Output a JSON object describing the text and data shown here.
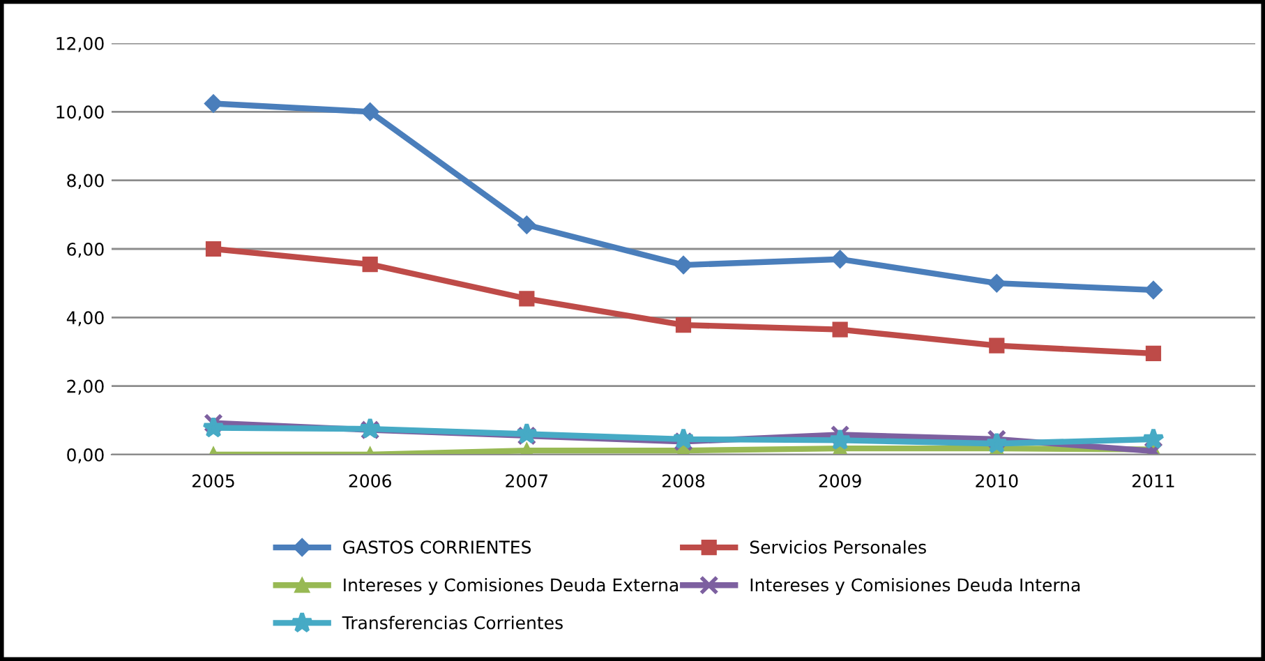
{
  "chart_data": {
    "type": "line",
    "categories": [
      "2005",
      "2006",
      "2007",
      "2008",
      "2009",
      "2010",
      "2011"
    ],
    "series": [
      {
        "name": "GASTOS CORRIENTES",
        "color": "#4a7ebb",
        "marker": "diamond",
        "values": [
          10.24,
          10.0,
          6.7,
          5.53,
          5.7,
          5.0,
          4.8
        ]
      },
      {
        "name": "Servicios Personales",
        "color": "#be4b48",
        "marker": "square",
        "values": [
          6.0,
          5.55,
          4.55,
          3.78,
          3.65,
          3.18,
          2.95
        ]
      },
      {
        "name": "Intereses y Comisiones Deuda Externa",
        "color": "#98b954",
        "marker": "triangle",
        "values": [
          0.0,
          0.0,
          0.12,
          0.12,
          0.18,
          0.18,
          0.15
        ]
      },
      {
        "name": "Intereses y Comisiones Deuda Interna",
        "color": "#7d60a0",
        "marker": "cross",
        "values": [
          0.92,
          0.72,
          0.55,
          0.38,
          0.58,
          0.45,
          0.1
        ]
      },
      {
        "name": "Transferencias Corrientes",
        "color": "#46aac5",
        "marker": "star",
        "values": [
          0.78,
          0.75,
          0.6,
          0.45,
          0.42,
          0.32,
          0.45
        ]
      }
    ],
    "ylim": [
      0,
      12
    ],
    "yticks": [
      {
        "value": 0,
        "label": "0,00"
      },
      {
        "value": 2,
        "label": "2,00"
      },
      {
        "value": 4,
        "label": "4,00"
      },
      {
        "value": 6,
        "label": "6,00"
      },
      {
        "value": 8,
        "label": "8,00"
      },
      {
        "value": 10,
        "label": "10,00"
      },
      {
        "value": 12,
        "label": "12,00"
      }
    ],
    "grid": "y",
    "legend": "bottom",
    "line_style": "solid"
  }
}
